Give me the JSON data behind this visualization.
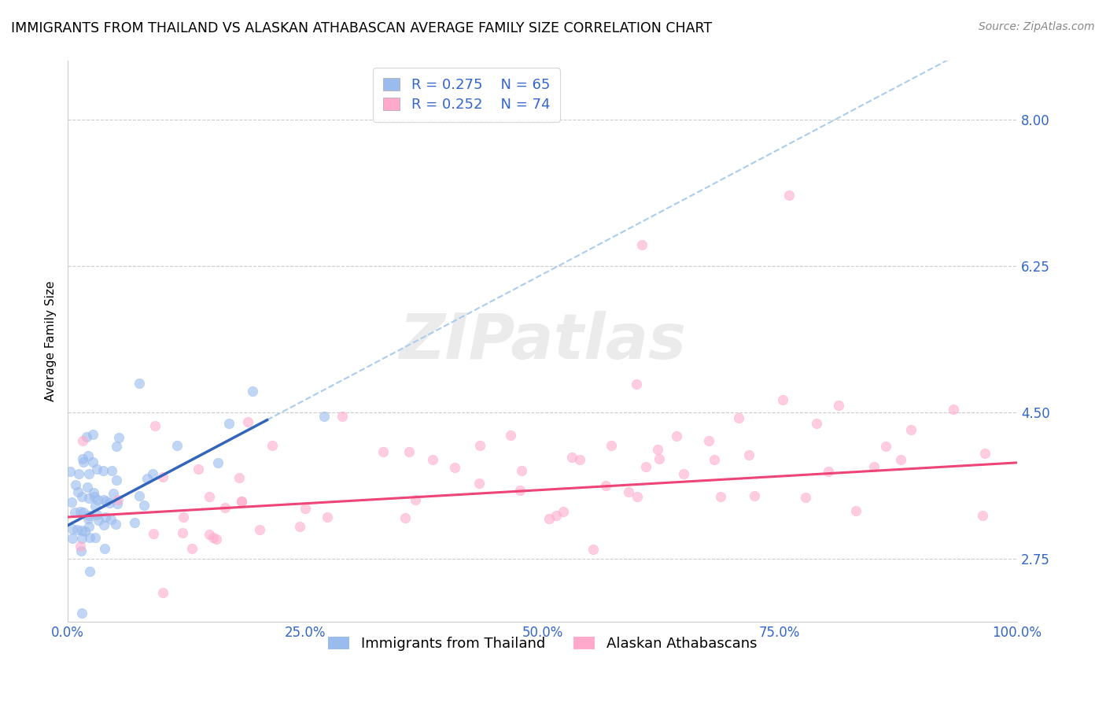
{
  "title": "IMMIGRANTS FROM THAILAND VS ALASKAN ATHABASCAN AVERAGE FAMILY SIZE CORRELATION CHART",
  "source": "Source: ZipAtlas.com",
  "ylabel": "Average Family Size",
  "xlabel": "",
  "xlim": [
    0,
    1
  ],
  "ylim": [
    2.0,
    8.7
  ],
  "yticks": [
    2.75,
    4.5,
    6.25,
    8.0
  ],
  "xticks": [
    0.0,
    0.25,
    0.5,
    0.75,
    1.0
  ],
  "xticklabels": [
    "0.0%",
    "25.0%",
    "50.0%",
    "75.0%",
    "100.0%"
  ],
  "blue_color": "#99BBEE",
  "pink_color": "#FFAACC",
  "blue_line_color": "#3366BB",
  "pink_line_color": "#EE4477",
  "ytick_color": "#3366CC",
  "label1": "Immigrants from Thailand",
  "label2": "Alaskan Athabascans",
  "watermark_text": "ZIPatlas",
  "R1": 0.275,
  "N1": 65,
  "R2": 0.252,
  "N2": 74,
  "title_fontsize": 12.5,
  "axis_label_fontsize": 11,
  "tick_fontsize": 12,
  "legend_fontsize": 13,
  "source_fontsize": 10
}
